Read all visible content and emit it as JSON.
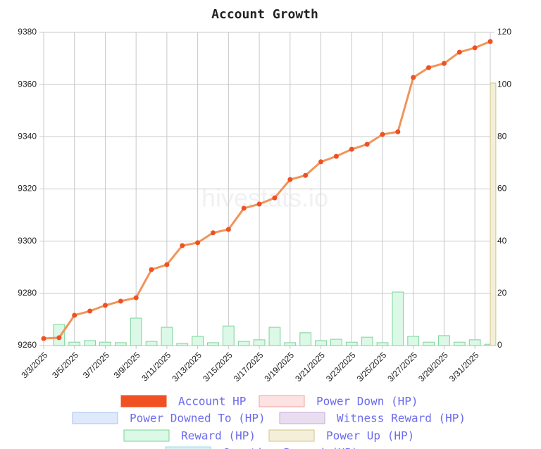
{
  "chart_data": {
    "type": "combo",
    "title": "Account Growth",
    "watermark": "hivestats.io",
    "categories": [
      "3/3/2025",
      null,
      "3/5/2025",
      null,
      "3/7/2025",
      null,
      "3/9/2025",
      null,
      "3/11/2025",
      null,
      "3/13/2025",
      null,
      "3/15/2025",
      null,
      "3/17/2025",
      null,
      "3/19/2025",
      null,
      "3/21/2025",
      null,
      "3/23/2025",
      null,
      "3/25/2025",
      null,
      "3/27/2025",
      null,
      "3/29/2025",
      null,
      "3/31/2025",
      null
    ],
    "ylim": [
      9260,
      9380
    ],
    "yticks": [
      9260,
      9280,
      9300,
      9320,
      9340,
      9360,
      9380
    ],
    "y2lim": [
      0,
      120
    ],
    "y2ticks": [
      0,
      20,
      40,
      60,
      80,
      100,
      120
    ],
    "grid": true,
    "series": [
      {
        "name": "Account HP",
        "type": "line",
        "color": "#f05022",
        "line_color": "#f0955a",
        "values": [
          9262.7,
          9263,
          9271.6,
          9273.2,
          9275.4,
          9277,
          9278.3,
          9289.1,
          9291,
          9298.3,
          9299.4,
          9303.2,
          9304.5,
          9312.6,
          9314.2,
          9316.6,
          9323.6,
          9325.2,
          9330.4,
          9332.5,
          9335.2,
          9337.1,
          9340.9,
          9341.9,
          9362.7,
          9366.5,
          9368.1,
          9372.4,
          9374.1,
          9376.5
        ]
      },
      {
        "name": "Power Down (HP)",
        "type": "bar",
        "axis": "y2",
        "color": "#fde2e2",
        "border_color": "#f2a3a3",
        "values": [
          null,
          null,
          null,
          null,
          null,
          null,
          null,
          null,
          null,
          null,
          null,
          null,
          null,
          null,
          null,
          null,
          null,
          null,
          null,
          null,
          null,
          null,
          null,
          null,
          null,
          null,
          null,
          null,
          null,
          null
        ]
      },
      {
        "name": "Power Downed To (HP)",
        "type": "bar",
        "axis": "y2",
        "color": "#dfe9fc",
        "border_color": "#a9c1f0",
        "values": [
          null,
          null,
          null,
          null,
          null,
          null,
          null,
          null,
          null,
          null,
          null,
          null,
          null,
          null,
          null,
          null,
          null,
          null,
          null,
          null,
          null,
          null,
          null,
          null,
          null,
          null,
          null,
          null,
          null,
          null
        ]
      },
      {
        "name": "Witness Reward (HP)",
        "type": "bar",
        "axis": "y2",
        "color": "#e9def0",
        "border_color": "#c2abd9",
        "values": [
          null,
          null,
          null,
          null,
          null,
          null,
          null,
          null,
          null,
          null,
          null,
          null,
          null,
          null,
          null,
          null,
          null,
          null,
          null,
          null,
          null,
          null,
          null,
          null,
          null,
          null,
          null,
          null,
          null,
          null
        ]
      },
      {
        "name": "Reward (HP)",
        "type": "bar",
        "axis": "y2",
        "color": "#dcf8e6",
        "border_color": "#7ad49a",
        "values": [
          null,
          8.1,
          1.3,
          1.9,
          1.3,
          1.1,
          10.5,
          1.6,
          7.0,
          0.8,
          3.5,
          1.1,
          7.5,
          1.6,
          2.2,
          7.0,
          1.1,
          4.9,
          1.9,
          2.4,
          1.3,
          3.2,
          1.1,
          20.5,
          3.5,
          1.3,
          3.8,
          1.3,
          2.2,
          0.5
        ]
      },
      {
        "name": "Power Up (HP)",
        "type": "bar",
        "axis": "y2",
        "color": "#f4efd8",
        "border_color": "#cfc48a",
        "values": [
          null,
          null,
          null,
          null,
          null,
          null,
          null,
          null,
          null,
          null,
          null,
          null,
          null,
          null,
          null,
          null,
          null,
          null,
          null,
          null,
          null,
          null,
          null,
          null,
          null,
          null,
          null,
          null,
          null,
          100.6
        ]
      },
      {
        "name": "Curation Reward (HP)",
        "type": "bar",
        "axis": "y2",
        "color": "#d9f1f5",
        "border_color": "#a2d9e1",
        "values": [
          null,
          null,
          null,
          null,
          null,
          null,
          null,
          null,
          null,
          null,
          null,
          null,
          null,
          null,
          null,
          null,
          null,
          null,
          null,
          null,
          null,
          null,
          null,
          null,
          null,
          null,
          null,
          null,
          null,
          null
        ]
      }
    ]
  }
}
